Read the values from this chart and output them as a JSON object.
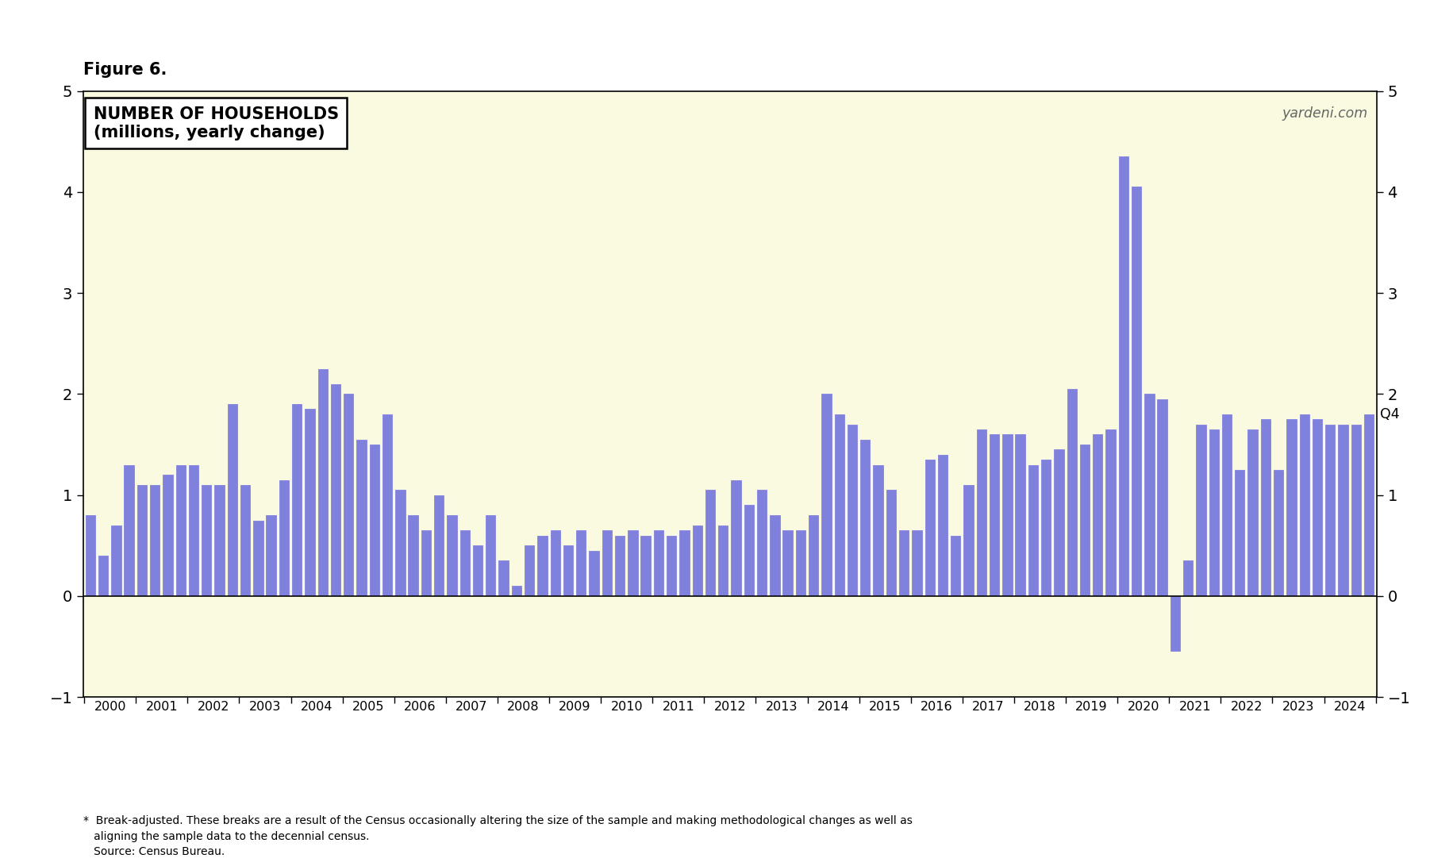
{
  "title": "Figure 6.",
  "box_title_line1": "NUMBER OF HOUSEHOLDS",
  "box_title_line2": "(millions, yearly change)",
  "watermark": "yardeni.com",
  "annotation": "Q4",
  "bar_color": "#8080dd",
  "background_color": "#fafae0",
  "outer_background": "#ffffff",
  "ylim": [
    -1,
    5
  ],
  "yticks": [
    -1,
    0,
    1,
    2,
    3,
    4,
    5
  ],
  "footnote_line1": "*  Break-adjusted. These breaks are a result of the Census occasionally altering the size of the sample and making methodological changes as well as",
  "footnote_line2": "   aligning the sample data to the decennial census.",
  "footnote_line3": "   Source: Census Bureau.",
  "values": [
    0.8,
    0.4,
    0.7,
    1.3,
    1.1,
    1.1,
    1.2,
    1.3,
    1.3,
    1.1,
    1.1,
    1.9,
    1.1,
    0.75,
    0.8,
    1.15,
    1.9,
    1.85,
    2.25,
    2.1,
    2.0,
    1.55,
    1.5,
    1.8,
    1.05,
    0.8,
    0.65,
    1.0,
    0.8,
    0.65,
    0.5,
    0.8,
    0.35,
    0.1,
    0.5,
    0.6,
    0.65,
    0.5,
    0.65,
    0.45,
    0.65,
    0.6,
    0.65,
    0.6,
    0.65,
    0.6,
    0.65,
    0.7,
    1.05,
    0.7,
    1.15,
    0.9,
    1.05,
    0.8,
    0.65,
    0.65,
    0.8,
    2.0,
    1.8,
    1.7,
    1.55,
    1.3,
    1.05,
    0.65,
    0.65,
    1.35,
    1.4,
    0.6,
    1.1,
    1.65,
    1.6,
    1.6,
    1.6,
    1.3,
    1.35,
    1.45,
    2.05,
    1.5,
    1.6,
    1.65,
    4.35,
    4.05,
    2.0,
    1.95,
    -0.55,
    0.35,
    1.7,
    1.65,
    1.8,
    1.25,
    1.65,
    1.75,
    1.25,
    1.75,
    1.8,
    1.75,
    1.7,
    1.7,
    1.7,
    1.8
  ],
  "year_labels": [
    "2000",
    "2001",
    "2002",
    "2003",
    "2004",
    "2005",
    "2006",
    "2007",
    "2008",
    "2009",
    "2010",
    "2011",
    "2012",
    "2013",
    "2014",
    "2015",
    "2016",
    "2017",
    "2018",
    "2019",
    "2020",
    "2021",
    "2022",
    "2023",
    "2024"
  ]
}
